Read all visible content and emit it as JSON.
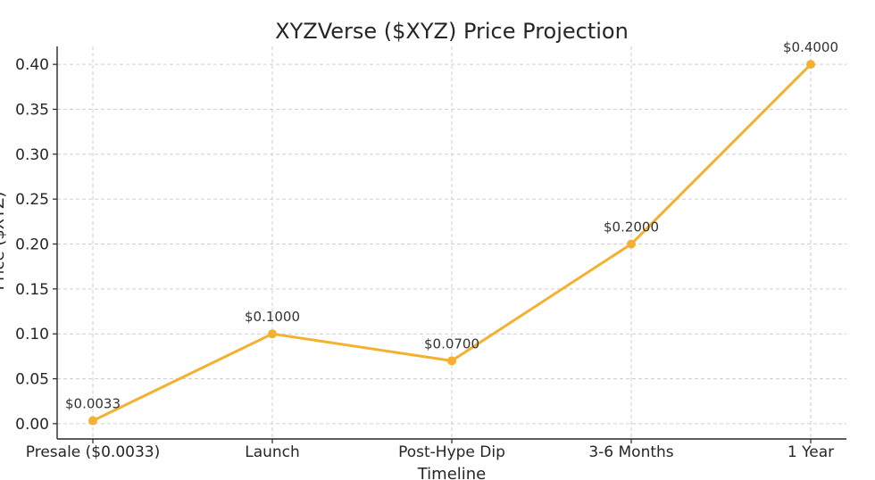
{
  "chart_data": {
    "type": "line",
    "title": "XYZVerse ($XYZ) Price Projection",
    "xlabel": "Timeline",
    "ylabel": "Price ($XYZ)",
    "categories": [
      "Presale ($0.0033)",
      "Launch",
      "Post-Hype Dip",
      "3-6 Months",
      "1 Year"
    ],
    "series": [
      {
        "values": [
          0.0033,
          0.1,
          0.07,
          0.2,
          0.4
        ],
        "data_labels": [
          "$0.0033",
          "$0.1000",
          "$0.0700",
          "$0.2000",
          "$0.4000"
        ]
      }
    ],
    "ylim": [
      -0.017,
      0.42
    ],
    "yticks": [
      0.0,
      0.05,
      0.1,
      0.15,
      0.2,
      0.25,
      0.3,
      0.35,
      0.4
    ],
    "ytick_labels": [
      "0.00",
      "0.05",
      "0.10",
      "0.15",
      "0.20",
      "0.25",
      "0.30",
      "0.35",
      "0.40"
    ],
    "grid": true,
    "line_color": "#F4B12F"
  }
}
